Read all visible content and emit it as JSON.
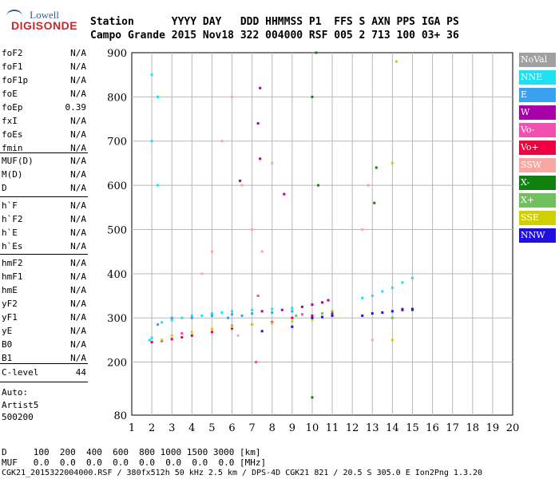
{
  "logo": {
    "line1": "Lowell",
    "line2": "DIGISONDE"
  },
  "header": {
    "row1": "Station      YYYY DAY   DDD HHMMSS P1  FFS S AXN PPS IGA PS",
    "row2": "Campo Grande 2015 Nov18 322 004000 RSF 005 2 713 100 03+ 36"
  },
  "params_group1": [
    {
      "k": "foF2",
      "v": "N/A"
    },
    {
      "k": "foF1",
      "v": "N/A"
    },
    {
      "k": "foF1p",
      "v": "N/A"
    },
    {
      "k": "foE",
      "v": "N/A"
    },
    {
      "k": "foEp",
      "v": "0.39"
    },
    {
      "k": "fxI",
      "v": "N/A"
    },
    {
      "k": "foEs",
      "v": "N/A"
    },
    {
      "k": "fmin",
      "v": "N/A"
    }
  ],
  "params_group2": [
    {
      "k": "MUF(D)",
      "v": "N/A"
    },
    {
      "k": "M(D)",
      "v": "N/A"
    },
    {
      "k": "D",
      "v": "N/A"
    }
  ],
  "params_group3": [
    {
      "k": "h`F",
      "v": "N/A"
    },
    {
      "k": "h`F2",
      "v": "N/A"
    },
    {
      "k": "h`E",
      "v": "N/A"
    },
    {
      "k": "h`Es",
      "v": "N/A"
    }
  ],
  "params_group4": [
    {
      "k": "hmF2",
      "v": "N/A"
    },
    {
      "k": "hmF1",
      "v": "N/A"
    },
    {
      "k": "hmE",
      "v": "N/A"
    },
    {
      "k": "yF2",
      "v": "N/A"
    },
    {
      "k": "yF1",
      "v": "N/A"
    },
    {
      "k": "yE",
      "v": "N/A"
    },
    {
      "k": "B0",
      "v": "N/A"
    },
    {
      "k": "B1",
      "v": "N/A"
    }
  ],
  "clevel": {
    "k": "C-level",
    "v": "44"
  },
  "autoscale": {
    "line1": "Auto:",
    "line2": "Artist5",
    "line3": "500200"
  },
  "legend": [
    {
      "name": "NoVal",
      "color": "#a0a0a0"
    },
    {
      "name": "NNE",
      "color": "#1ee0f0"
    },
    {
      "name": "E",
      "color": "#3aa0f0"
    },
    {
      "name": "W",
      "color": "#a800a8"
    },
    {
      "name": "Vo-",
      "color": "#f050b0"
    },
    {
      "name": "Vo+",
      "color": "#f00040"
    },
    {
      "name": "SSW",
      "color": "#f8a8a0"
    },
    {
      "name": "X-",
      "color": "#108010"
    },
    {
      "name": "X+",
      "color": "#70c060"
    },
    {
      "name": "SSE",
      "color": "#d0d000"
    },
    {
      "name": "NNW",
      "color": "#2010e0"
    }
  ],
  "bottom": {
    "line1": "D     100  200  400  600  800 1000 1500 3000 [km]",
    "line2": "MUF   0.0  0.0  0.0  0.0  0.0  0.0  0.0  0.0 [MHz]",
    "line3": "CGK21_2015322004000.RSF / 380fx512h 50 kHz 2.5 km / DPS-4D CGK21 821 / 20.5 S 305.0 E Ion2Png 1.3.20"
  },
  "chart_data": {
    "type": "scatter",
    "xlabel": "",
    "ylabel": "",
    "xlim": [
      1,
      20
    ],
    "ylim": [
      80,
      900
    ],
    "x_ticks": [
      1,
      2,
      3,
      4,
      5,
      6,
      7,
      8,
      9,
      10,
      11,
      12,
      13,
      14,
      15,
      16,
      17,
      18,
      19,
      20
    ],
    "y_ticks": [
      80,
      200,
      300,
      400,
      500,
      600,
      700,
      800,
      900
    ],
    "series": [
      {
        "name": "NNE",
        "points": [
          [
            1.9,
            250
          ],
          [
            2.0,
            255
          ],
          [
            2.5,
            290
          ],
          [
            3.0,
            295
          ],
          [
            3.5,
            300
          ],
          [
            4.0,
            305
          ],
          [
            4.5,
            305
          ],
          [
            5.0,
            310
          ],
          [
            5.5,
            312
          ],
          [
            6.0,
            315
          ],
          [
            7.0,
            318
          ],
          [
            8.0,
            320
          ],
          [
            9.0,
            322
          ],
          [
            12.5,
            345
          ],
          [
            13.0,
            350
          ],
          [
            13.5,
            360
          ],
          [
            14.0,
            368
          ],
          [
            14.5,
            380
          ],
          [
            15.0,
            390
          ],
          [
            2.0,
            700
          ],
          [
            2.0,
            850
          ],
          [
            2.3,
            800
          ],
          [
            2.3,
            600
          ]
        ]
      },
      {
        "name": "E",
        "points": [
          [
            2.3,
            285
          ],
          [
            3.0,
            300
          ],
          [
            4.0,
            300
          ],
          [
            5.0,
            305
          ],
          [
            6.0,
            308
          ],
          [
            7.0,
            310
          ],
          [
            8.0,
            312
          ],
          [
            9.0,
            315
          ],
          [
            5.8,
            300
          ],
          [
            6.5,
            305
          ]
        ]
      },
      {
        "name": "W",
        "points": [
          [
            7.5,
            315
          ],
          [
            8.5,
            318
          ],
          [
            9.5,
            325
          ],
          [
            10.0,
            330
          ],
          [
            10.5,
            335
          ],
          [
            10.8,
            340
          ],
          [
            7.4,
            660
          ],
          [
            7.3,
            740
          ],
          [
            7.4,
            820
          ],
          [
            6.4,
            610
          ],
          [
            8.6,
            580
          ]
        ]
      },
      {
        "name": "Vo-",
        "points": [
          [
            3.5,
            265
          ],
          [
            5.0,
            275
          ],
          [
            6.0,
            282
          ],
          [
            7.2,
            200
          ],
          [
            7.3,
            350
          ],
          [
            9.5,
            308
          ]
        ]
      },
      {
        "name": "Vo+",
        "points": [
          [
            2.0,
            245
          ],
          [
            2.5,
            248
          ],
          [
            3.0,
            252
          ],
          [
            3.5,
            256
          ],
          [
            4.0,
            260
          ],
          [
            5.0,
            268
          ],
          [
            6.0,
            276
          ],
          [
            7.0,
            285
          ],
          [
            8.0,
            290
          ],
          [
            9.0,
            300
          ],
          [
            10.0,
            305
          ],
          [
            11.0,
            310
          ],
          [
            14.5,
            320
          ],
          [
            15.0,
            318
          ]
        ]
      },
      {
        "name": "SSW",
        "points": [
          [
            4.5,
            400
          ],
          [
            5.0,
            450
          ],
          [
            5.5,
            700
          ],
          [
            6.0,
            800
          ],
          [
            6.5,
            600
          ],
          [
            7.0,
            500
          ],
          [
            7.5,
            450
          ],
          [
            8.0,
            650
          ],
          [
            12.5,
            500
          ],
          [
            12.8,
            600
          ],
          [
            13.0,
            250
          ],
          [
            6.3,
            260
          ]
        ]
      },
      {
        "name": "X-",
        "points": [
          [
            10.2,
            900
          ],
          [
            10.0,
            800
          ],
          [
            10.3,
            600
          ],
          [
            10.0,
            120
          ],
          [
            13.2,
            640
          ],
          [
            13.1,
            560
          ]
        ]
      },
      {
        "name": "X+",
        "points": [
          [
            9.2,
            305
          ],
          [
            10.5,
            310
          ],
          [
            11.0,
            315
          ],
          [
            14.0,
            300
          ]
        ]
      },
      {
        "name": "SSE",
        "points": [
          [
            2.5,
            250
          ],
          [
            3.0,
            260
          ],
          [
            4.0,
            268
          ],
          [
            5.0,
            275
          ],
          [
            6.0,
            280
          ],
          [
            7.0,
            285
          ],
          [
            8.0,
            288
          ],
          [
            9.0,
            292
          ],
          [
            10.0,
            296
          ],
          [
            14.2,
            880
          ],
          [
            14.0,
            650
          ],
          [
            14.0,
            250
          ]
        ]
      },
      {
        "name": "NNW",
        "points": [
          [
            10.0,
            300
          ],
          [
            10.5,
            302
          ],
          [
            11.0,
            305
          ],
          [
            12.5,
            305
          ],
          [
            13.0,
            310
          ],
          [
            13.5,
            312
          ],
          [
            14.0,
            315
          ],
          [
            14.5,
            318
          ],
          [
            15.0,
            320
          ],
          [
            7.5,
            270
          ],
          [
            9.0,
            280
          ]
        ]
      }
    ]
  }
}
